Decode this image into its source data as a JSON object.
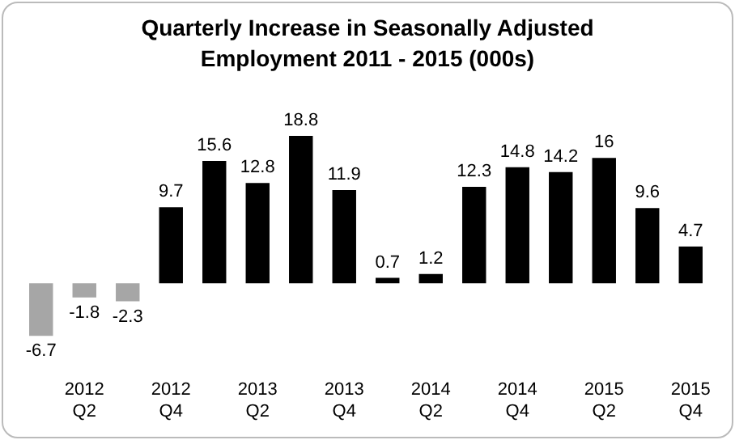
{
  "chart_data": {
    "type": "bar",
    "title": "Quarterly Increase in Seasonally Adjusted Employment 2011 - 2015 (000s)",
    "categories": [
      null,
      "2012 Q2",
      null,
      "2012 Q4",
      null,
      "2013 Q2",
      null,
      "2013 Q4",
      null,
      "2014 Q2",
      null,
      "2014 Q4",
      null,
      "2015 Q2",
      null,
      "2015 Q4"
    ],
    "values": [
      -6.7,
      -1.8,
      -2.3,
      9.7,
      15.6,
      12.8,
      18.8,
      11.9,
      0.7,
      1.2,
      12.3,
      14.8,
      14.2,
      16,
      9.6,
      4.7
    ],
    "colors": [
      "#a6a6a6",
      "#a6a6a6",
      "#a6a6a6",
      "#000000",
      "#000000",
      "#000000",
      "#000000",
      "#000000",
      "#000000",
      "#000000",
      "#000000",
      "#000000",
      "#000000",
      "#000000",
      "#000000",
      "#000000"
    ],
    "data_labels": true,
    "grid": false,
    "legend": false
  }
}
